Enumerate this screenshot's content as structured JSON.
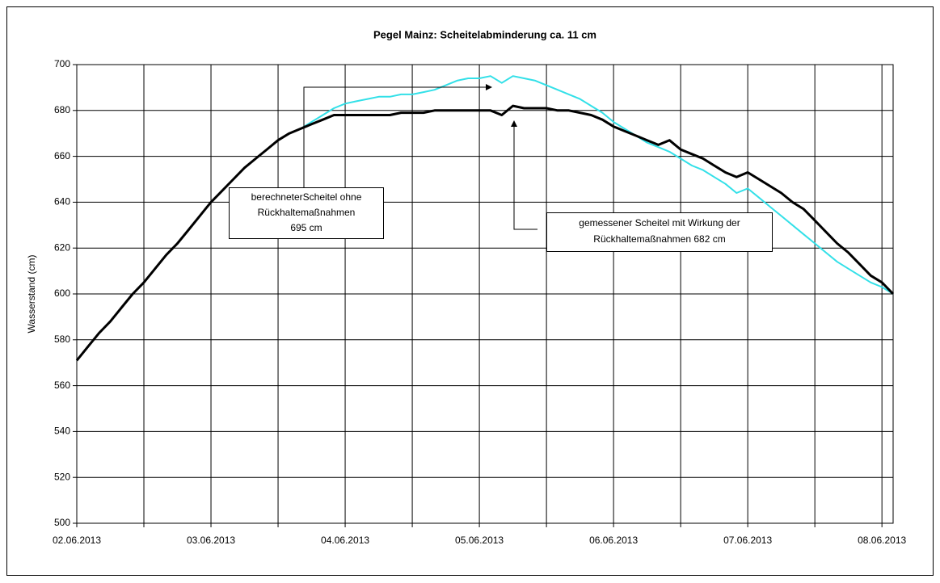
{
  "chart_data": {
    "type": "line",
    "title": "Pegel Mainz: Scheitelabminderung ca. 11 cm",
    "y_label": "Wasserstand (cm)",
    "categories": [
      "02.06.2013",
      null,
      null,
      null,
      null,
      null,
      null,
      null,
      null,
      null,
      null,
      null,
      "03.06.2013",
      null,
      null,
      null,
      null,
      null,
      null,
      null,
      null,
      null,
      null,
      null,
      "04.06.2013",
      null,
      null,
      null,
      null,
      null,
      null,
      null,
      null,
      null,
      null,
      null,
      "05.06.2013",
      null,
      null,
      null,
      null,
      null,
      null,
      null,
      null,
      null,
      null,
      null,
      "06.06.2013",
      null,
      null,
      null,
      null,
      null,
      null,
      null,
      null,
      null,
      null,
      null,
      "07.06.2013",
      null,
      null,
      null,
      null,
      null,
      null,
      null,
      null,
      null,
      null,
      null,
      "08.06.2013",
      null
    ],
    "series": [
      {
        "color": "#33e0e8",
        "values": [
          571,
          577,
          583,
          588,
          594,
          600,
          605,
          611,
          617,
          622,
          628,
          634,
          640,
          645,
          650,
          655,
          659,
          663,
          667,
          670,
          672,
          675,
          678,
          681,
          683,
          684,
          685,
          686,
          686,
          687,
          687,
          688,
          689,
          691,
          693,
          694,
          694,
          695,
          692,
          695,
          694,
          693,
          691,
          689,
          687,
          685,
          682,
          679,
          675,
          672,
          669,
          666,
          664,
          662,
          659,
          656,
          654,
          651,
          648,
          644,
          646,
          642,
          638,
          634,
          630,
          626,
          622,
          618,
          614,
          611,
          608,
          605,
          603,
          600
        ]
      },
      {
        "color": "#000000",
        "values": [
          571,
          577,
          583,
          588,
          594,
          600,
          605,
          611,
          617,
          622,
          628,
          634,
          640,
          645,
          650,
          655,
          659,
          663,
          667,
          670,
          672,
          674,
          676,
          678,
          678,
          678,
          678,
          678,
          678,
          679,
          679,
          679,
          680,
          680,
          680,
          680,
          680,
          680,
          678,
          682,
          681,
          681,
          681,
          680,
          680,
          679,
          678,
          676,
          673,
          671,
          669,
          667,
          665,
          667,
          663,
          661,
          659,
          656,
          653,
          651,
          653,
          650,
          647,
          644,
          640,
          637,
          632,
          627,
          622,
          618,
          613,
          608,
          605,
          600
        ]
      }
    ],
    "ylim": [
      500,
      700
    ],
    "yticks": [
      500,
      520,
      540,
      560,
      580,
      600,
      620,
      640,
      660,
      680,
      700
    ],
    "grid": true,
    "annotations": [
      {
        "lines": [
          "berechneterScheitel ohne",
          "Rückhaltemaßnahmen",
          "695 cm"
        ]
      },
      {
        "lines": [
          "gemessener Scheitel  mit Wirkung der",
          "Rückhaltemaßnahmen 682 cm"
        ]
      }
    ]
  }
}
